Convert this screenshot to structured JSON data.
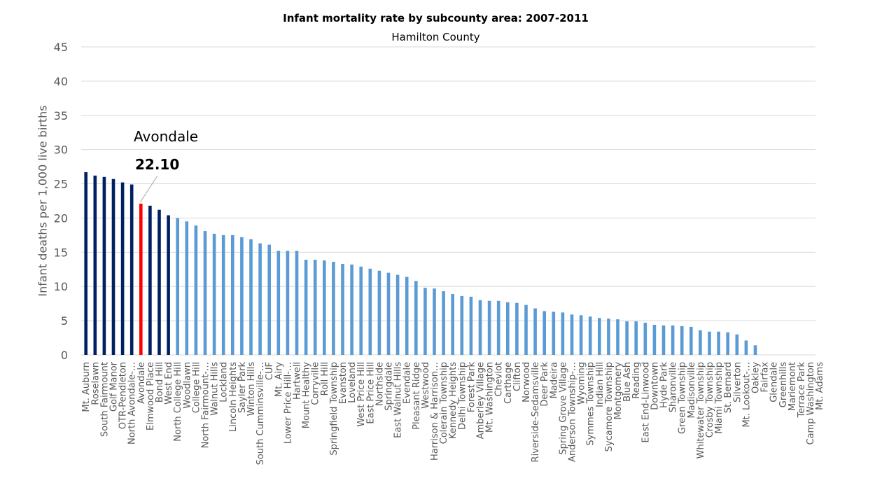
{
  "chart_data": {
    "type": "bar",
    "title": "Infant mortality rate by subcounty area: 2007-2011",
    "subtitle": "Hamilton County",
    "xlabel": "",
    "ylabel": "Infant deaths per 1,000 live births",
    "ylim": [
      0,
      45
    ],
    "yticks": [
      0,
      5,
      10,
      15,
      20,
      25,
      30,
      35,
      40,
      45
    ],
    "grid": true,
    "legend": "none",
    "colors": {
      "top": "#002060",
      "highlight": "#ff0000",
      "rest": "#5b9bd5",
      "grid": "#d9d9d9",
      "tick": "#595959"
    },
    "highlight": {
      "category": "Avondale",
      "value_label": "22.10"
    },
    "categories": [
      "Mt. Auburn",
      "Roselawn",
      "South Fairmount",
      "Golf Manor",
      "OTR-Pendleton",
      "North Avondale-…",
      "Avondale",
      "Elmwood Place",
      "Bond Hill",
      "West End",
      "North College Hill",
      "Woodlawn",
      "College Hill",
      "North Fairmount-…",
      "Walnut Hills",
      "Lockland",
      "Lincoln Heights",
      "Sayler Park",
      "Winton Hills",
      "South Cumminsville-…",
      "CUF",
      "Mt. Airy",
      "Lower Price Hill-…",
      "Hartwell",
      "Mount Healthy",
      "Corryville",
      "Roll Hill",
      "Springfield Township",
      "Evanston",
      "Loveland",
      "West Price Hill",
      "East Price Hill",
      "Northside",
      "Springdale",
      "East Walnut Hills",
      "Evendale",
      "Pleasant Ridge",
      "Westwood",
      "Harrison & Harrison…",
      "Colerain Township",
      "Kennedy Heights",
      "Delhi Township",
      "Forest Park",
      "Amberley Village",
      "Mt. Washington",
      "Cheviot",
      "Carthage",
      "Clifton",
      "Norwood",
      "Riverside-Sedamsville",
      "Deer Park",
      "Madeira",
      "Spring Grove Village",
      "Anderson Township-…",
      "Wyoming",
      "Symmes Township",
      "Indian Hill",
      "Sycamore Township",
      "Montgomery",
      "Blue Ash",
      "Reading",
      "East End-Linwood",
      "Downtown",
      "Hyde Park",
      "Sharonville",
      "Green Township",
      "Madisonville",
      "Whitewater Township",
      "Crosby Township",
      "Miami Township",
      "St. Bernard",
      "Silverton",
      "Mt. Lookout-…",
      "Oakley",
      "Fairfax",
      "Glendale",
      "Greenhills",
      "Mariemont",
      "Terrace Park",
      "Camp Washington",
      "Mt. Adams"
    ],
    "values": [
      26.7,
      26.2,
      26.0,
      25.7,
      25.2,
      24.9,
      22.1,
      21.8,
      21.2,
      20.4,
      20.0,
      19.5,
      18.9,
      18.1,
      17.7,
      17.5,
      17.5,
      17.2,
      16.9,
      16.3,
      16.1,
      15.2,
      15.2,
      15.2,
      13.9,
      13.9,
      13.8,
      13.6,
      13.3,
      13.2,
      12.9,
      12.6,
      12.3,
      12.0,
      11.7,
      11.4,
      10.8,
      9.8,
      9.7,
      9.3,
      8.9,
      8.6,
      8.5,
      8.0,
      7.9,
      7.9,
      7.7,
      7.6,
      7.3,
      6.8,
      6.4,
      6.3,
      6.2,
      5.9,
      5.8,
      5.6,
      5.4,
      5.3,
      5.2,
      4.9,
      4.9,
      4.7,
      4.4,
      4.3,
      4.3,
      4.2,
      4.1,
      3.6,
      3.4,
      3.4,
      3.3,
      3.0,
      2.1,
      1.4,
      0,
      0,
      0,
      0,
      0,
      0,
      0
    ]
  }
}
